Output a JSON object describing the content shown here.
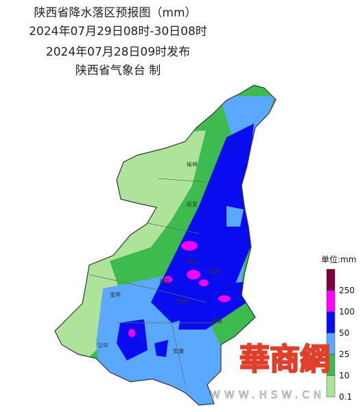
{
  "header": {
    "title": "陕西省降水落区预报图（mm）",
    "period": "2024年07月29日08时-30日08时",
    "issued": "2024年07月28日09时发布",
    "agency": "陕西省气象台 制"
  },
  "cities": [
    {
      "label": "榆林"
    },
    {
      "label": "延安"
    },
    {
      "label": "铜川"
    },
    {
      "label": "宝鸡"
    },
    {
      "label": "咸阳"
    },
    {
      "label": "渭南"
    },
    {
      "label": "西安"
    },
    {
      "label": "商洛"
    },
    {
      "label": "汉中"
    },
    {
      "label": "安康"
    }
  ],
  "legend": {
    "title": "单位:mm",
    "levels": [
      250,
      100,
      50,
      25,
      10,
      0.1
    ]
  },
  "watermark": {
    "logo": "華商網",
    "url": "WWW.HSW.CN"
  }
}
